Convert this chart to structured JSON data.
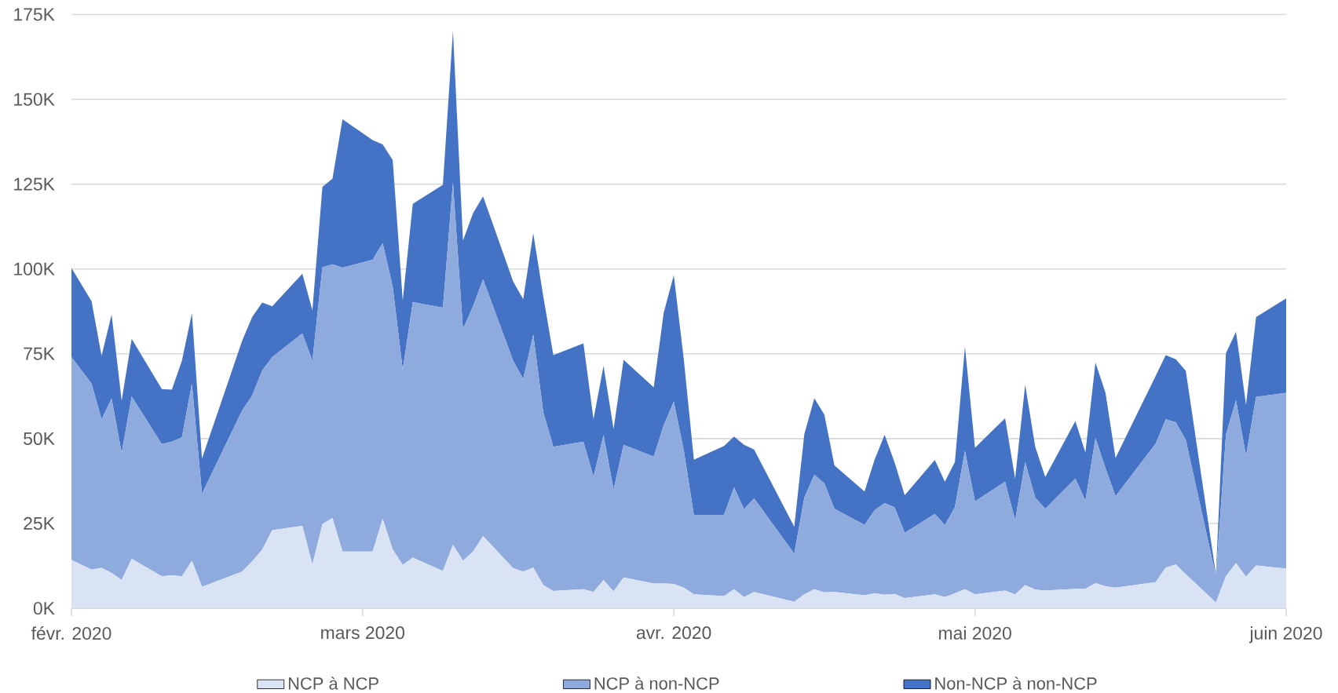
{
  "chart_data": {
    "type": "area",
    "stacked": true,
    "grid": "y",
    "legend": "bottom",
    "x": [
      "2020-02-01",
      "2020-02-03",
      "2020-02-04",
      "2020-02-05",
      "2020-02-06",
      "2020-02-07",
      "2020-02-10",
      "2020-02-11",
      "2020-02-12",
      "2020-02-13",
      "2020-02-14",
      "2020-02-18",
      "2020-02-19",
      "2020-02-20",
      "2020-02-21",
      "2020-02-24",
      "2020-02-25",
      "2020-02-26",
      "2020-02-27",
      "2020-02-28",
      "2020-03-02",
      "2020-03-03",
      "2020-03-04",
      "2020-03-05",
      "2020-03-06",
      "2020-03-09",
      "2020-03-10",
      "2020-03-11",
      "2020-03-12",
      "2020-03-13",
      "2020-03-16",
      "2020-03-17",
      "2020-03-18",
      "2020-03-19",
      "2020-03-20",
      "2020-03-23",
      "2020-03-24",
      "2020-03-25",
      "2020-03-26",
      "2020-03-27",
      "2020-03-30",
      "2020-03-31",
      "2020-04-01",
      "2020-04-02",
      "2020-04-03",
      "2020-04-06",
      "2020-04-07",
      "2020-04-08",
      "2020-04-09",
      "2020-04-13",
      "2020-04-14",
      "2020-04-15",
      "2020-04-16",
      "2020-04-17",
      "2020-04-20",
      "2020-04-21",
      "2020-04-22",
      "2020-04-23",
      "2020-04-24",
      "2020-04-27",
      "2020-04-28",
      "2020-04-29",
      "2020-04-30",
      "2020-05-01",
      "2020-05-04",
      "2020-05-05",
      "2020-05-06",
      "2020-05-07",
      "2020-05-08",
      "2020-05-11",
      "2020-05-12",
      "2020-05-13",
      "2020-05-14",
      "2020-05-15",
      "2020-05-19",
      "2020-05-20",
      "2020-05-21",
      "2020-05-22",
      "2020-05-25",
      "2020-05-26",
      "2020-05-27",
      "2020-05-28",
      "2020-05-29",
      "2020-06-01"
    ],
    "series": [
      {
        "name": "NCP à NCP",
        "color": "#dae3f3",
        "values": [
          14200,
          11400,
          11900,
          10400,
          8300,
          14600,
          9400,
          9700,
          9400,
          14000,
          6300,
          10800,
          13800,
          17300,
          23000,
          24300,
          12900,
          24800,
          26600,
          16700,
          16700,
          26400,
          17300,
          12800,
          14900,
          11000,
          18700,
          14000,
          16700,
          21300,
          11800,
          10800,
          12000,
          6800,
          5100,
          5600,
          4800,
          8300,
          5000,
          9100,
          7300,
          7300,
          7200,
          6100,
          4100,
          3600,
          5600,
          3300,
          4800,
          1900,
          4100,
          5600,
          4700,
          4800,
          3800,
          4400,
          4000,
          4200,
          3000,
          4100,
          3300,
          4400,
          5600,
          4100,
          5200,
          4100,
          6800,
          5500,
          5200,
          5700,
          5700,
          7400,
          6500,
          6100,
          7700,
          12000,
          12900,
          10000,
          1700,
          9500,
          13300,
          9300,
          12600,
          11700
        ]
      },
      {
        "name": "NCP à non-NCP",
        "color": "#8faadc",
        "values": [
          59800,
          54800,
          43800,
          51400,
          37500,
          47800,
          39000,
          39400,
          41000,
          52200,
          27500,
          47500,
          48900,
          52800,
          51000,
          56700,
          60000,
          75700,
          74800,
          83700,
          86000,
          81200,
          77500,
          57500,
          75300,
          77600,
          106800,
          68300,
          72300,
          75700,
          61100,
          56800,
          68700,
          51000,
          42500,
          43500,
          34000,
          42800,
          30000,
          39100,
          37400,
          46700,
          53700,
          40300,
          23400,
          23900,
          30000,
          25900,
          27600,
          14200,
          28500,
          33800,
          32100,
          24500,
          20800,
          24500,
          27000,
          25500,
          19200,
          23700,
          21200,
          25400,
          40800,
          27400,
          32100,
          21900,
          36200,
          27100,
          24100,
          32500,
          26000,
          42800,
          34800,
          26900,
          40800,
          43700,
          41900,
          39600,
          7800,
          41700,
          48000,
          35700,
          49700,
          51800
        ]
      },
      {
        "name": "Non-NCP à non-NCP",
        "color": "#4472c4",
        "values": [
          26300,
          24300,
          18700,
          24800,
          15400,
          17000,
          16200,
          15300,
          22500,
          20800,
          10300,
          20500,
          23100,
          20000,
          15000,
          17600,
          14900,
          23700,
          25200,
          43700,
          35300,
          29100,
          37300,
          20400,
          29000,
          36200,
          44700,
          26100,
          27400,
          24400,
          23400,
          23500,
          29800,
          34100,
          27000,
          29000,
          16900,
          20300,
          17800,
          25000,
          20400,
          33200,
          37300,
          26800,
          16300,
          20300,
          15000,
          19000,
          14400,
          7900,
          18700,
          22500,
          20200,
          12800,
          9800,
          14900,
          20100,
          13200,
          11100,
          15900,
          12800,
          13300,
          30700,
          15800,
          18700,
          12200,
          22900,
          15000,
          9400,
          17000,
          14200,
          22200,
          22200,
          11300,
          20000,
          18900,
          18600,
          20400,
          500,
          24000,
          20200,
          15000,
          23500,
          27800
        ]
      }
    ],
    "xlim": [
      "2020-02-01",
      "2020-06-01"
    ],
    "xticks": [
      {
        "value": "2020-02-01",
        "label": "févr. 2020"
      },
      {
        "value": "2020-03-01",
        "label": "mars 2020"
      },
      {
        "value": "2020-04-01",
        "label": "avr. 2020"
      },
      {
        "value": "2020-05-01",
        "label": "mai 2020"
      },
      {
        "value": "2020-06-01",
        "label": "juin 2020"
      }
    ],
    "ylim": [
      0,
      175000
    ],
    "yticks": [
      {
        "value": 0,
        "label": "0K"
      },
      {
        "value": 25000,
        "label": "25K"
      },
      {
        "value": 50000,
        "label": "50K"
      },
      {
        "value": 75000,
        "label": "75K"
      },
      {
        "value": 100000,
        "label": "100K"
      },
      {
        "value": 125000,
        "label": "125K"
      },
      {
        "value": 150000,
        "label": "150K"
      },
      {
        "value": 175000,
        "label": "175K"
      }
    ]
  }
}
